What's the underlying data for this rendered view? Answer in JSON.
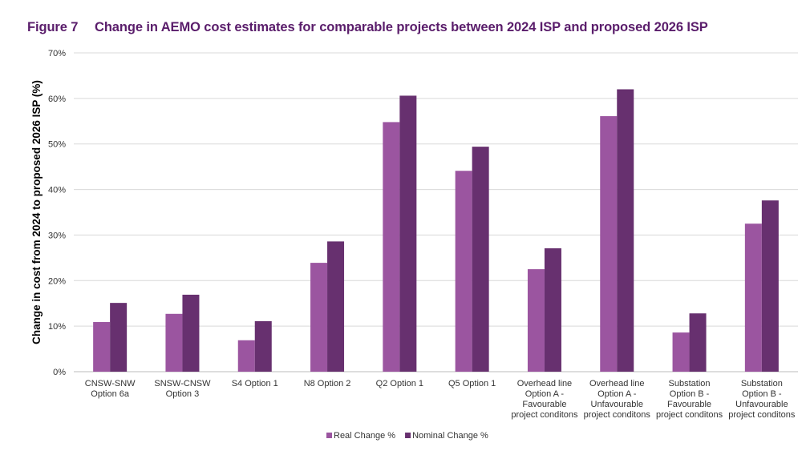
{
  "figure": {
    "number": "Figure 7",
    "title": "Change in AEMO cost estimates for comparable projects between 2024 ISP and proposed 2026 ISP"
  },
  "chart_data": {
    "type": "bar",
    "title": "Change in AEMO cost estimates for comparable projects between 2024 ISP and proposed 2026 ISP",
    "ylabel": "Change in cost from 2024 to proposed 2026 ISP (%)",
    "xlabel": "",
    "ylim": [
      0,
      70
    ],
    "yticks": [
      "0%",
      "10%",
      "20%",
      "30%",
      "40%",
      "50%",
      "60%",
      "70%"
    ],
    "grid": true,
    "legend_placement": "bottom",
    "categories": [
      "CNSW-SNW\nOption 6a",
      "SNSW-CNSW\nOption 3",
      "S4 Option 1",
      "N8 Option 2",
      "Q2 Option 1",
      "Q5 Option 1",
      "Overhead line\nOption A -\nFavourable\nproject conditons",
      "Overhead line\nOption A -\nUnfavourable\nproject conditons",
      "Substation\nOption B -\nFavourable\nproject conditons",
      "Substation\nOption B -\nUnfavourable\nproject conditons"
    ],
    "series": [
      {
        "name": "Real Change %",
        "color": "#9b55a0",
        "values": [
          10.9,
          12.7,
          6.9,
          23.9,
          54.8,
          44.1,
          22.5,
          56.1,
          8.6,
          32.5
        ]
      },
      {
        "name": "Nominal Change %",
        "color": "#67306f",
        "values": [
          15.1,
          16.9,
          11.1,
          28.6,
          60.6,
          49.4,
          27.1,
          62.0,
          12.8,
          37.6
        ]
      }
    ]
  }
}
